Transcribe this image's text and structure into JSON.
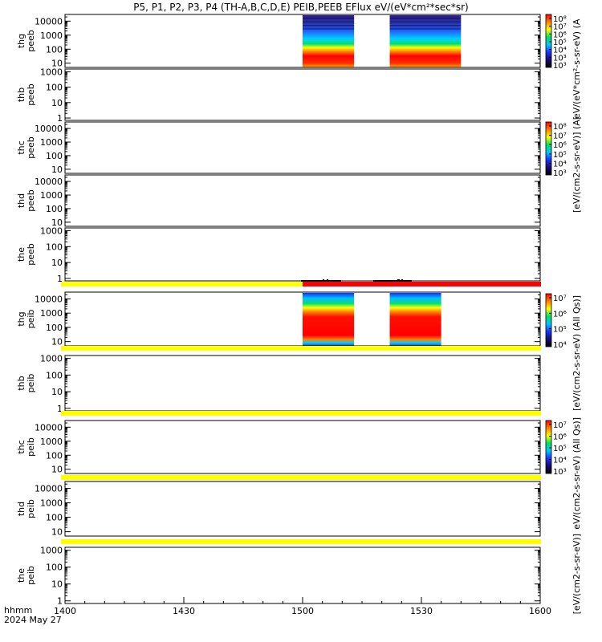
{
  "title": "P5, P1, P2, P3, P4 (TH-A,B,C,D,E) PEIB,PEEB EFlux eV/(eV*cm²*sec*sr)",
  "colorbar_labels": {
    "electron_top": "eV/(eV*cm²-s-sr-eV) (A",
    "electron_mid": "[eV/(cm2-s-sr-eV)] (A[",
    "ion_thg": "[eV/(cm2-s-sr-eV) (All Qs)]",
    "ion_thb": "eV/(cm2-s-sr-eV) (All Qs)]",
    "ion_low": "[eV/(cm2-s-sr-eV)]"
  },
  "x_axis": {
    "label_top": "hhmm",
    "label_bottom": "2024 May 27",
    "ticks": [
      "1400",
      "1430",
      "1500",
      "1530",
      "1600"
    ]
  },
  "chart_data": {
    "type": "heatmap",
    "title": "P5, P1, P2, P3, P4 (TH-A,B,C,D,E) PEIB,PEEB EFlux eV/(eV*cm²*sec*sr)",
    "x_range": [
      "14:00",
      "16:00"
    ],
    "y_scale": "log",
    "colormap": [
      "#000000",
      "#1a0a6e",
      "#2030ff",
      "#00c8ff",
      "#00e060",
      "#ffff00",
      "#ff8000",
      "#ff0000"
    ],
    "panels": [
      {
        "id": "tha-peeb",
        "label1": "thg",
        "label2": "peeb",
        "yticks": [
          "10000",
          "1000",
          "100",
          "10"
        ],
        "y_range": [
          5,
          30000
        ],
        "data_blocks": [
          [
            "15:00",
            "15:13"
          ],
          [
            "15:22",
            "15:40"
          ]
        ],
        "colorbar": {
          "ticks": [
            "10⁸",
            "10⁷",
            "10⁶",
            "10⁵",
            "10⁴",
            "10³",
            "10³"
          ]
        }
      },
      {
        "id": "thb-peeb",
        "label1": "thb",
        "label2": "peeb",
        "yticks": [
          "1000",
          "100",
          "10",
          "1"
        ],
        "y_range": [
          0.7,
          1500
        ],
        "data_blocks": []
      },
      {
        "id": "thc-peeb",
        "label1": "thc",
        "label2": "peeb",
        "yticks": [
          "10000",
          "1000",
          "100",
          "10"
        ],
        "y_range": [
          5,
          30000
        ],
        "data_blocks": [],
        "colorbar": {
          "ticks": [
            "10⁸",
            "10⁷",
            "10⁶",
            "10⁵",
            "10⁴",
            "10³"
          ]
        }
      },
      {
        "id": "thd-peeb",
        "label1": "thd",
        "label2": "peeb",
        "yticks": [
          "10000",
          "1000",
          "100",
          "10"
        ],
        "y_range": [
          5,
          30000
        ],
        "data_blocks": []
      },
      {
        "id": "the-peeb",
        "label1": "the",
        "label2": "peeb",
        "yticks": [
          "1000",
          "100",
          "10",
          "1"
        ],
        "y_range": [
          0.7,
          1500
        ],
        "data_blocks": []
      },
      {
        "id": "thg-peib",
        "label1": "thg",
        "label2": "peib",
        "yticks": [
          "10000",
          "1000",
          "100",
          "10"
        ],
        "y_range": [
          5,
          30000
        ],
        "data_blocks": [
          [
            "15:00",
            "15:13"
          ],
          [
            "15:22",
            "15:35"
          ]
        ],
        "colorbar": {
          "ticks": [
            "10⁷",
            "10⁶",
            "10⁵",
            "10⁴"
          ]
        }
      },
      {
        "id": "thb-peib",
        "label1": "thb",
        "label2": "peib",
        "yticks": [
          "1000",
          "100",
          "10",
          "1"
        ],
        "y_range": [
          0.7,
          1500
        ],
        "data_blocks": []
      },
      {
        "id": "thc-peib",
        "label1": "thc",
        "label2": "peib",
        "yticks": [
          "10000",
          "1000",
          "100",
          "10"
        ],
        "y_range": [
          5,
          30000
        ],
        "data_blocks": [],
        "colorbar": {
          "ticks": [
            "10⁷",
            "10⁶",
            "10⁵",
            "10⁴",
            "10³"
          ]
        }
      },
      {
        "id": "thd-peib",
        "label1": "thd",
        "label2": "peib",
        "yticks": [
          "10000",
          "1000",
          "100",
          "10"
        ],
        "y_range": [
          5,
          30000
        ],
        "data_blocks": []
      },
      {
        "id": "the-peib",
        "label1": "the",
        "label2": "peib",
        "yticks": [
          "1000",
          "100",
          "10",
          "1"
        ],
        "y_range": [
          0.7,
          1500
        ],
        "data_blocks": []
      }
    ],
    "status_bars": [
      {
        "after_panel": "the-peeb",
        "segments": [
          {
            "from": "14:00",
            "to": "15:00",
            "color": "#ffff00"
          },
          {
            "from": "15:00",
            "to": "16:00",
            "color": "#ff0000"
          }
        ]
      },
      {
        "after_panel": "thg-peib",
        "segments": [
          {
            "from": "14:00",
            "to": "16:00",
            "color": "#ffff00"
          }
        ]
      },
      {
        "after_panel": "thb-peib",
        "segments": [
          {
            "from": "14:00",
            "to": "16:00",
            "color": "#ffff00"
          }
        ]
      },
      {
        "after_panel": "thc-peib",
        "segments": [
          {
            "from": "14:00",
            "to": "16:00",
            "color": "#ffff00"
          }
        ]
      },
      {
        "after_panel": "thd-peib",
        "segments": [
          {
            "from": "14:00",
            "to": "16:00",
            "color": "#ffff00"
          }
        ]
      }
    ]
  }
}
